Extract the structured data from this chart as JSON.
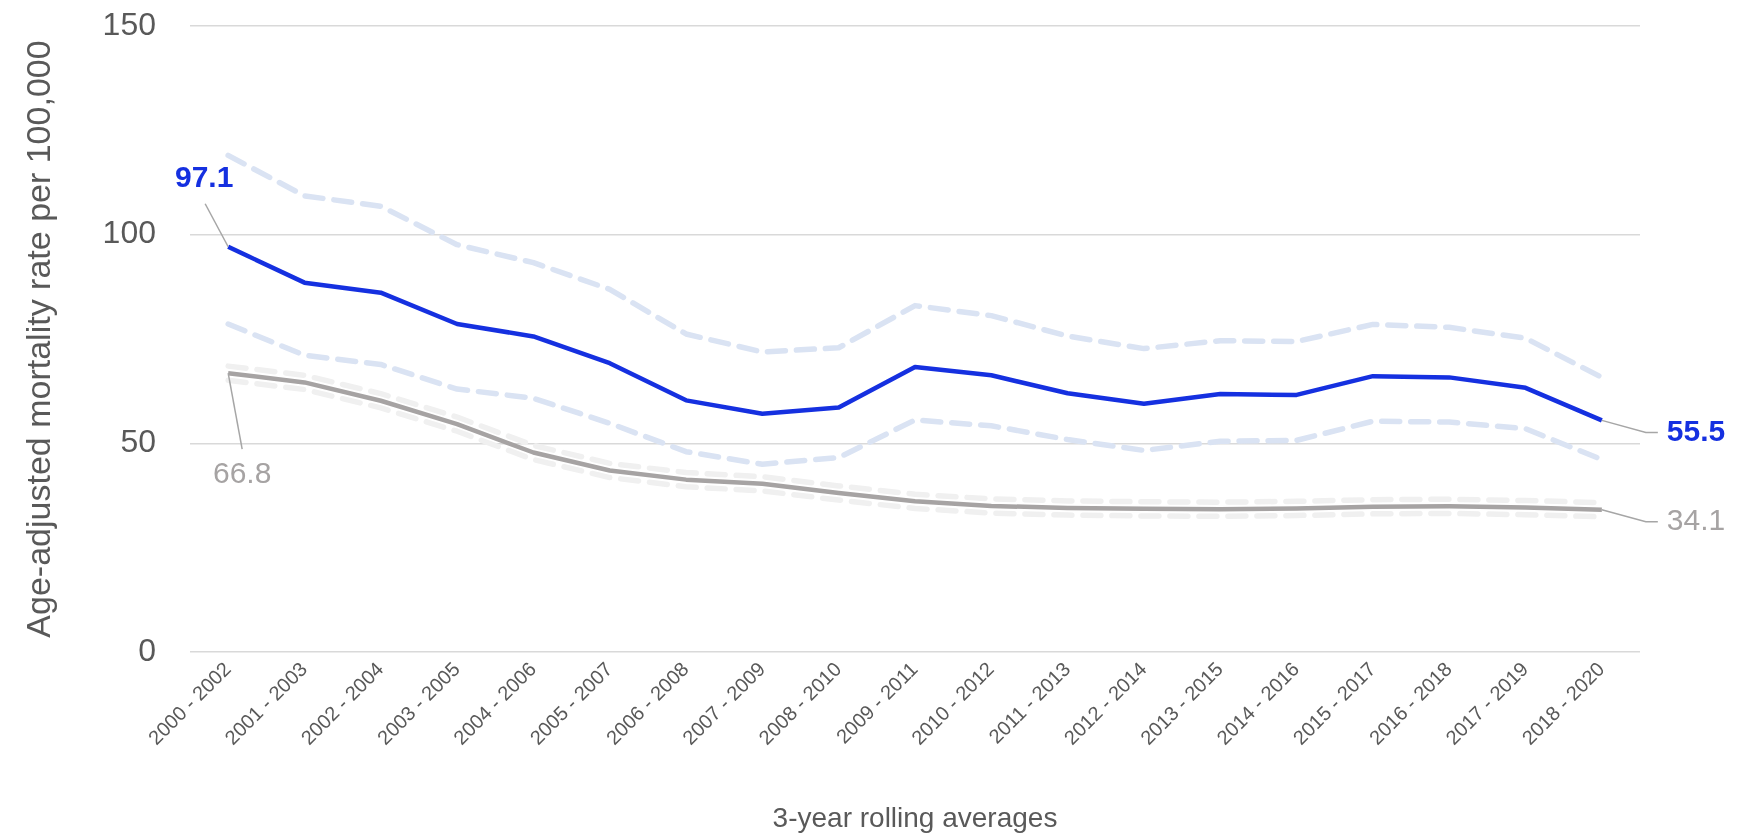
{
  "chart_data": {
    "type": "line",
    "xlabel": "3-year rolling averages",
    "ylabel": "Age-adjusted mortality rate per 100,000",
    "categories": [
      "2000 - 2002",
      "2001 - 2003",
      "2002 - 2004",
      "2003 - 2005",
      "2004 - 2006",
      "2005 - 2007",
      "2006 - 2008",
      "2007 - 2009",
      "2008 - 2010",
      "2009 - 2011",
      "2010 - 2012",
      "2011 - 2013",
      "2012 - 2014",
      "2013 - 2015",
      "2014 - 2016",
      "2015 - 2017",
      "2016 - 2018",
      "2017 - 2019",
      "2018 - 2020"
    ],
    "series": [
      {
        "color": "#dae3f3",
        "line_style": "dashed",
        "values": [
          119.0,
          109.3,
          106.8,
          97.6,
          93.3,
          86.9,
          76.2,
          71.9,
          72.9,
          83.0,
          80.6,
          75.7,
          72.7,
          74.6,
          74.4,
          78.5,
          77.8,
          75.2,
          65.8
        ]
      },
      {
        "color": "#dae3f3",
        "line_style": "dashed",
        "values": [
          78.6,
          71.1,
          68.9,
          63.0,
          60.8,
          54.8,
          48.0,
          45.0,
          46.6,
          55.6,
          54.2,
          50.9,
          48.3,
          50.5,
          50.7,
          55.3,
          55.1,
          53.5,
          46.1
        ]
      },
      {
        "color": "#1530e0",
        "values": [
          97.1,
          88.5,
          86.1,
          78.6,
          75.6,
          69.2,
          60.3,
          57.1,
          58.6,
          68.3,
          66.3,
          62.0,
          59.5,
          61.8,
          61.6,
          66.1,
          65.8,
          63.3,
          55.5
        ],
        "value_labels": [
          "97.1",
          null,
          null,
          null,
          null,
          null,
          null,
          null,
          null,
          null,
          null,
          null,
          null,
          null,
          null,
          null,
          null,
          null,
          "55.5"
        ]
      },
      {
        "color": "#f0f0f0",
        "line_style": "dashed",
        "values": [
          68.5,
          66.3,
          61.9,
          56.3,
          49.5,
          45.2,
          43.0,
          42.0,
          39.8,
          37.8,
          36.7,
          36.2,
          36.0,
          35.9,
          36.1,
          36.5,
          36.6,
          36.3,
          35.8
        ]
      },
      {
        "color": "#f0f0f0",
        "line_style": "dashed",
        "values": [
          65.1,
          62.9,
          58.5,
          52.9,
          46.1,
          41.8,
          39.6,
          38.6,
          36.4,
          34.4,
          33.3,
          32.8,
          32.6,
          32.5,
          32.7,
          33.1,
          33.2,
          32.9,
          32.4
        ]
      },
      {
        "color": "#a6a3a3",
        "values": [
          66.8,
          64.6,
          60.2,
          54.6,
          47.8,
          43.5,
          41.3,
          40.3,
          38.1,
          36.1,
          35.0,
          34.5,
          34.3,
          34.2,
          34.4,
          34.8,
          34.9,
          34.6,
          34.1
        ],
        "value_labels": [
          "66.8",
          null,
          null,
          null,
          null,
          null,
          null,
          null,
          null,
          null,
          null,
          null,
          null,
          null,
          null,
          null,
          null,
          null,
          "34.1"
        ]
      }
    ],
    "ylim": [
      0,
      150
    ],
    "yticks": [
      0,
      50,
      100,
      150
    ],
    "grid": "y",
    "legend": false
  }
}
